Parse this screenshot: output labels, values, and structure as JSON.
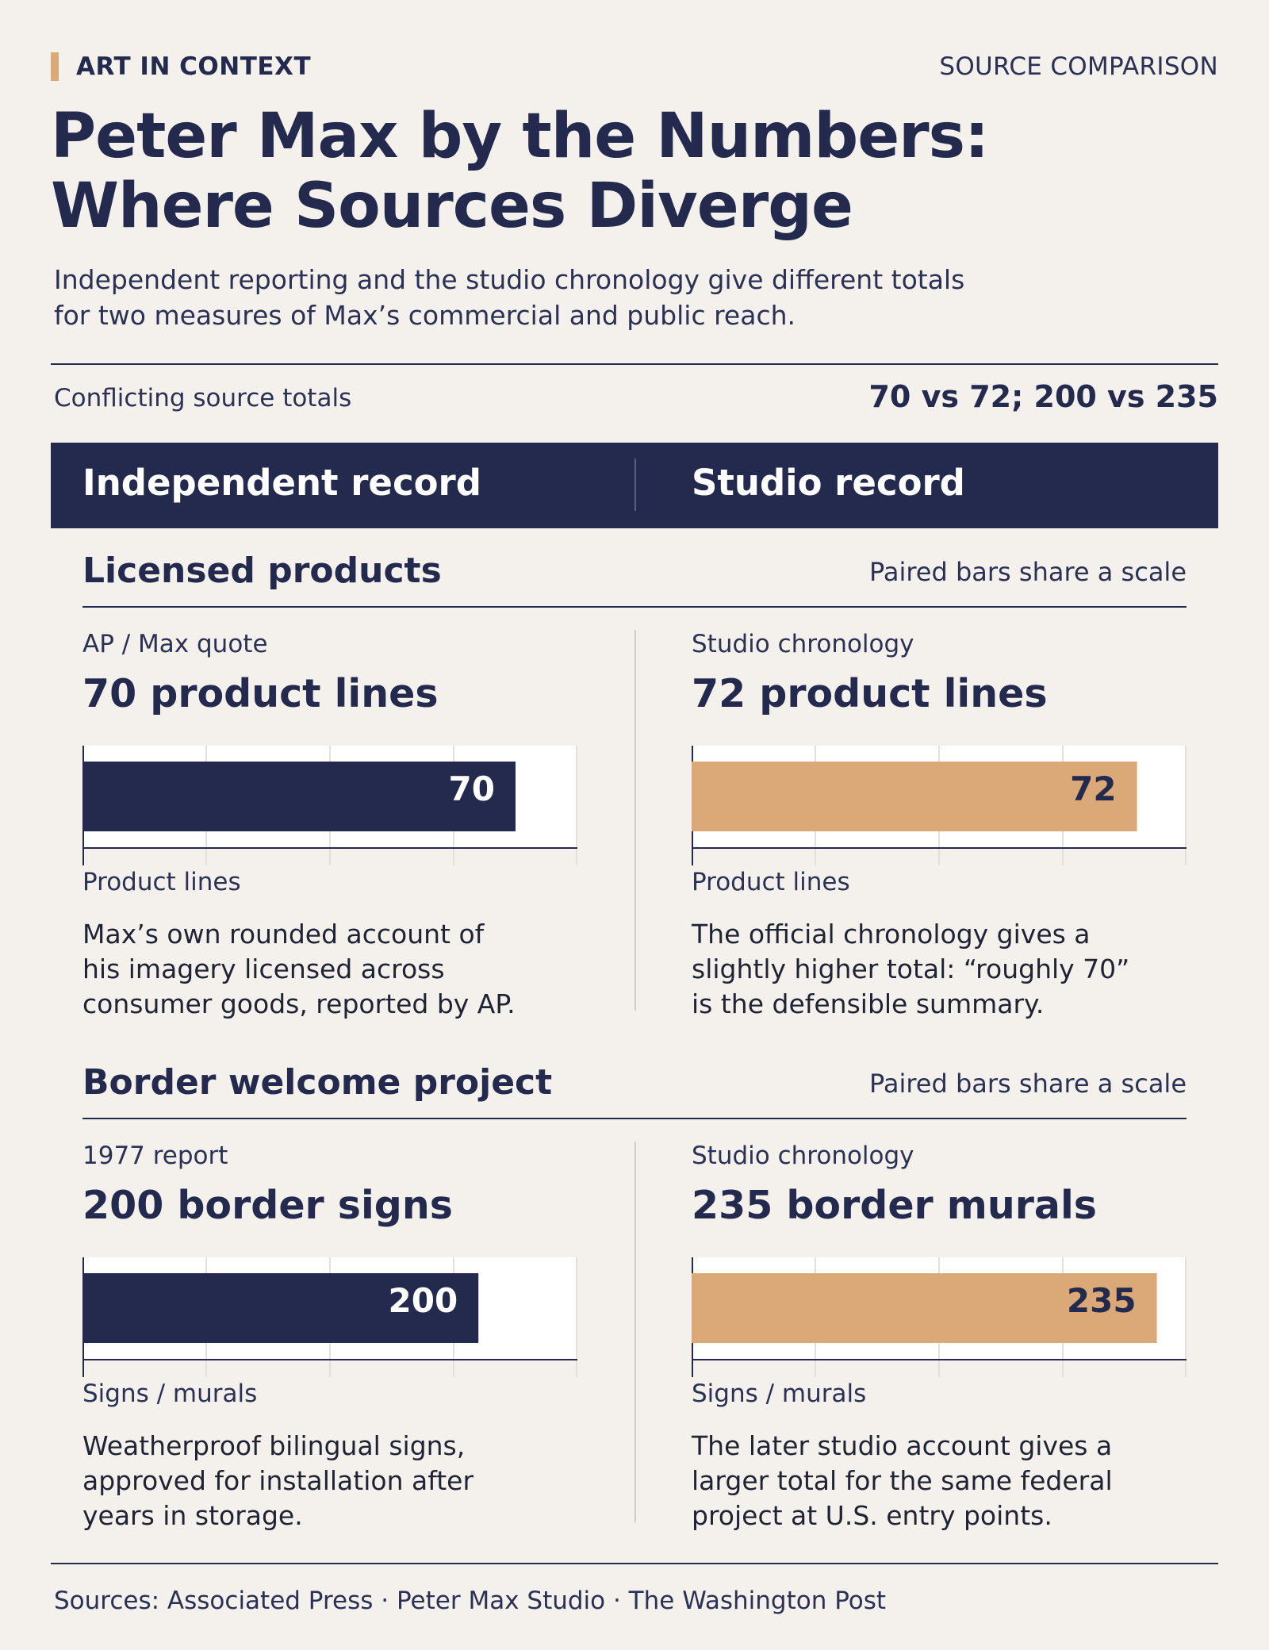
{
  "kicker": "ART IN CONTEXT",
  "badge": "SOURCE COMPARISON",
  "title_line1": "Peter Max by the Numbers:",
  "title_line2": "Where Sources Diverge",
  "subtitle_line1": "Independent reporting and the studio chronology give different totals",
  "subtitle_line2": "for two measures of Max’s commercial and public reach.",
  "summary_label": "Conflicting source totals",
  "summary_value": "70 vs 72; 200 vs 235",
  "header_left": "Independent record",
  "header_right": "Studio record",
  "colors": {
    "navy": "#232a4e",
    "tan": "#dba878",
    "background": "#f4f1ec"
  },
  "sections": [
    {
      "title": "Licensed products",
      "note": "Paired bars share a scale",
      "left": {
        "source": "AP / Max quote",
        "headline": "70 product lines",
        "unit": "Product lines",
        "desc_lines": [
          "Max’s own rounded account of",
          "his imagery licensed across",
          "consumer goods, reported by AP."
        ]
      },
      "right": {
        "source": "Studio chronology",
        "headline": "72 product lines",
        "unit": "Product lines",
        "desc_lines": [
          "The official chronology gives a",
          "slightly higher total: “roughly 70”",
          "is the defensible summary."
        ]
      }
    },
    {
      "title": "Border welcome project",
      "note": "Paired bars share a scale",
      "left": {
        "source": "1977 report",
        "headline": "200 border signs",
        "unit": "Signs / murals",
        "desc_lines": [
          "Weatherproof bilingual signs,",
          "approved for installation after",
          "years in storage."
        ]
      },
      "right": {
        "source": "Studio chronology",
        "headline": "235 border murals",
        "unit": "Signs / murals",
        "desc_lines": [
          "The later studio account gives a",
          "larger total for the same federal",
          "project at U.S. entry points."
        ]
      }
    }
  ],
  "footer": "Sources: Associated Press · Peter Max Studio · The Washington Post",
  "chart_data": [
    {
      "type": "bar",
      "categories": [
        "AP / Max quote",
        "Studio chronology"
      ],
      "values": [
        70,
        72
      ],
      "value_labels": [
        "70",
        "72"
      ],
      "xlim": [
        0,
        80
      ],
      "grid": true
    },
    {
      "type": "bar",
      "categories": [
        "1977 report",
        "Studio chronology"
      ],
      "values": [
        200,
        235
      ],
      "value_labels": [
        "200",
        "235"
      ],
      "xlim": [
        0,
        250
      ],
      "grid": true
    }
  ]
}
